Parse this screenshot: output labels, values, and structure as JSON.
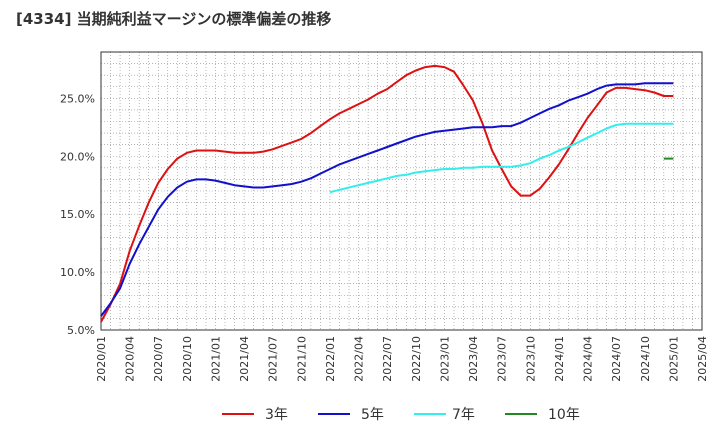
{
  "chart_data": {
    "type": "line",
    "title": "[4334]  当期純利益マージンの標準偏差の推移",
    "xlabel": "",
    "ylabel": "",
    "ylim": [
      5.0,
      29.0
    ],
    "yticks": [
      "5.0%",
      "10.0%",
      "15.0%",
      "20.0%",
      "25.0%"
    ],
    "ytick_values": [
      5,
      10,
      15,
      20,
      25
    ],
    "xticks": [
      "2020/01",
      "2020/04",
      "2020/07",
      "2020/10",
      "2021/01",
      "2021/04",
      "2021/07",
      "2021/10",
      "2022/01",
      "2022/04",
      "2022/07",
      "2022/10",
      "2023/01",
      "2023/04",
      "2023/07",
      "2023/10",
      "2024/01",
      "2024/04",
      "2024/07",
      "2024/10",
      "2025/01",
      "2025/04"
    ],
    "grid": true,
    "legend_position": "bottom",
    "colors": {
      "3年": "#dd1111",
      "5年": "#1111cc",
      "7年": "#33eeee",
      "10年": "#228822"
    },
    "series": [
      {
        "name": "3年",
        "color": "#dd1111",
        "x": [
          "2020/01",
          "2020/02",
          "2020/03",
          "2020/04",
          "2020/05",
          "2020/06",
          "2020/07",
          "2020/08",
          "2020/09",
          "2020/10",
          "2020/11",
          "2020/12",
          "2021/01",
          "2021/02",
          "2021/03",
          "2021/04",
          "2021/05",
          "2021/06",
          "2021/07",
          "2021/08",
          "2021/09",
          "2021/10",
          "2021/11",
          "2021/12",
          "2022/01",
          "2022/02",
          "2022/03",
          "2022/04",
          "2022/05",
          "2022/06",
          "2022/07",
          "2022/08",
          "2022/09",
          "2022/10",
          "2022/11",
          "2022/12",
          "2023/01",
          "2023/02",
          "2023/03",
          "2023/04",
          "2023/05",
          "2023/06",
          "2023/07",
          "2023/08",
          "2023/09",
          "2023/10",
          "2023/11",
          "2023/12",
          "2024/01",
          "2024/02",
          "2024/03",
          "2024/04",
          "2024/05",
          "2024/06",
          "2024/07",
          "2024/08",
          "2024/09",
          "2024/10",
          "2024/11",
          "2024/12",
          "2025/01"
        ],
        "values": [
          5.7,
          7.2,
          9.0,
          11.8,
          14.0,
          16.0,
          17.7,
          18.9,
          19.8,
          20.3,
          20.5,
          20.5,
          20.5,
          20.4,
          20.3,
          20.3,
          20.3,
          20.4,
          20.6,
          20.9,
          21.2,
          21.5,
          22.0,
          22.6,
          23.2,
          23.7,
          24.1,
          24.5,
          24.9,
          25.4,
          25.8,
          26.4,
          27.0,
          27.4,
          27.7,
          27.8,
          27.7,
          27.3,
          26.1,
          24.8,
          22.8,
          20.5,
          18.9,
          17.4,
          16.6,
          16.6,
          17.2,
          18.2,
          19.3,
          20.6,
          22.0,
          23.3,
          24.4,
          25.5,
          25.9,
          25.9,
          25.8,
          25.7,
          25.5,
          25.2,
          25.2
        ],
        "visible_count": 61
      },
      {
        "name": "5年",
        "color": "#1111cc",
        "x": [
          "2020/01",
          "2020/02",
          "2020/03",
          "2020/04",
          "2020/05",
          "2020/06",
          "2020/07",
          "2020/08",
          "2020/09",
          "2020/10",
          "2020/11",
          "2020/12",
          "2021/01",
          "2021/02",
          "2021/03",
          "2021/04",
          "2021/05",
          "2021/06",
          "2021/07",
          "2021/08",
          "2021/09",
          "2021/10",
          "2021/11",
          "2021/12",
          "2022/01",
          "2022/02",
          "2022/03",
          "2022/04",
          "2022/05",
          "2022/06",
          "2022/07",
          "2022/08",
          "2022/09",
          "2022/10",
          "2022/11",
          "2022/12",
          "2023/01",
          "2023/02",
          "2023/03",
          "2023/04",
          "2023/05",
          "2023/06",
          "2023/07",
          "2023/08",
          "2023/09",
          "2023/10",
          "2023/11",
          "2023/12",
          "2024/01",
          "2024/02",
          "2024/03",
          "2024/04",
          "2024/05",
          "2024/06",
          "2024/07",
          "2024/08",
          "2024/09",
          "2024/10",
          "2024/11",
          "2024/12",
          "2025/01"
        ],
        "values": [
          6.2,
          7.3,
          8.6,
          10.7,
          12.4,
          13.9,
          15.4,
          16.5,
          17.3,
          17.8,
          18.0,
          18.0,
          17.9,
          17.7,
          17.5,
          17.4,
          17.3,
          17.3,
          17.4,
          17.5,
          17.6,
          17.8,
          18.1,
          18.5,
          18.9,
          19.3,
          19.6,
          19.9,
          20.2,
          20.5,
          20.8,
          21.1,
          21.4,
          21.7,
          21.9,
          22.1,
          22.2,
          22.3,
          22.4,
          22.5,
          22.5,
          22.5,
          22.6,
          22.6,
          22.9,
          23.3,
          23.7,
          24.1,
          24.4,
          24.8,
          25.1,
          25.4,
          25.8,
          26.1,
          26.2,
          26.2,
          26.2,
          26.3,
          26.3,
          26.3,
          26.3
        ],
        "visible_count": 61
      },
      {
        "name": "7年",
        "color": "#33eeee",
        "x": [
          "2022/01",
          "2022/02",
          "2022/03",
          "2022/04",
          "2022/05",
          "2022/06",
          "2022/07",
          "2022/08",
          "2022/09",
          "2022/10",
          "2022/11",
          "2022/12",
          "2023/01",
          "2023/02",
          "2023/03",
          "2023/04",
          "2023/05",
          "2023/06",
          "2023/07",
          "2023/08",
          "2023/09",
          "2023/10",
          "2023/11",
          "2023/12",
          "2024/01",
          "2024/02",
          "2024/03",
          "2024/04",
          "2024/05",
          "2024/06",
          "2024/07",
          "2024/08",
          "2024/09",
          "2024/10",
          "2024/11",
          "2024/12",
          "2025/01"
        ],
        "values": [
          16.9,
          17.1,
          17.3,
          17.5,
          17.7,
          17.9,
          18.1,
          18.3,
          18.4,
          18.6,
          18.7,
          18.8,
          18.9,
          18.9,
          19.0,
          19.0,
          19.1,
          19.1,
          19.1,
          19.1,
          19.2,
          19.4,
          19.8,
          20.1,
          20.5,
          20.8,
          21.2,
          21.6,
          22.0,
          22.4,
          22.7,
          22.8,
          22.8,
          22.8,
          22.8,
          22.8,
          22.8
        ],
        "visible_count": 37
      },
      {
        "name": "10年",
        "color": "#228822",
        "x": [
          "2024/12",
          "2025/01"
        ],
        "values": [
          19.8,
          19.8
        ],
        "visible_count": 2
      }
    ]
  }
}
